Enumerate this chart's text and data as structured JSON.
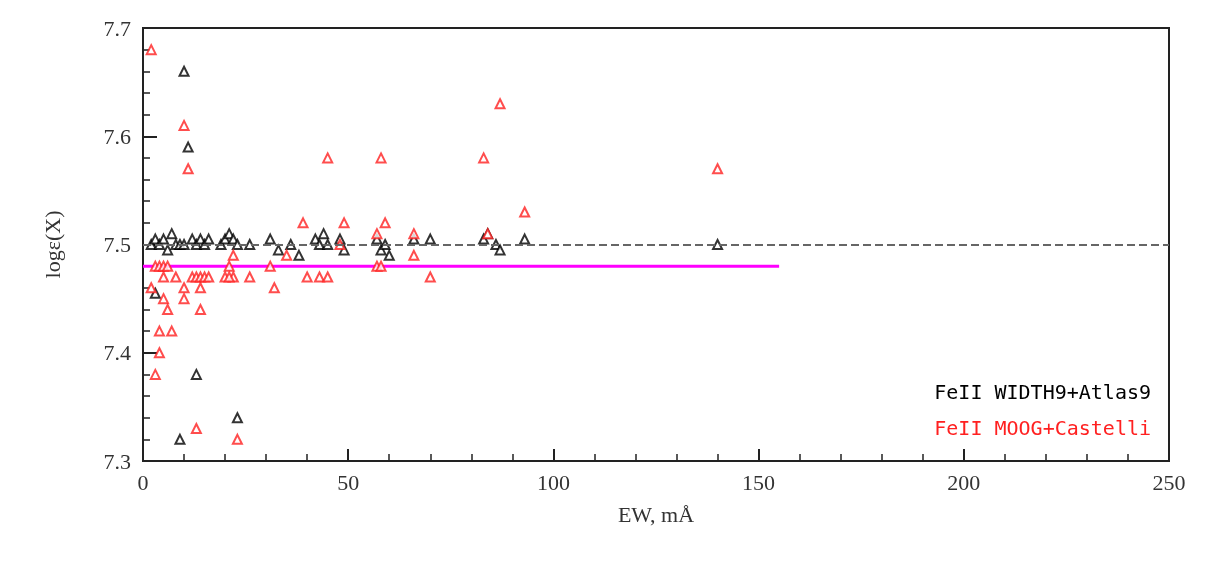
{
  "chart_data": {
    "type": "scatter",
    "xlabel": "EW, mÅ",
    "ylabel": "logε(X)",
    "xlim": [
      0,
      250
    ],
    "xticks": [
      0,
      50,
      100,
      150,
      200,
      250
    ],
    "ylim": [
      7.3,
      7.7
    ],
    "yticks": [
      7.3,
      7.4,
      7.5,
      7.6,
      7.7
    ],
    "grid": false,
    "legend": "bottom right",
    "marker": "triangle",
    "ref_lines": [
      {
        "axis": "y",
        "value": 7.5,
        "label": null,
        "color": "#666666",
        "line_style": "dashed"
      }
    ],
    "series": [
      {
        "name": "FeII WIDTH9+Atlas9",
        "color": "#000000",
        "x": [
          10,
          11,
          3,
          13,
          9,
          23,
          140,
          2,
          3,
          4,
          5,
          6,
          7,
          8,
          9,
          10,
          12,
          13,
          14,
          15,
          16,
          19,
          20,
          21,
          22,
          23,
          26,
          31,
          33,
          36,
          38,
          42,
          43,
          44,
          45,
          48,
          49,
          57,
          58,
          59,
          60,
          66,
          70,
          83,
          84,
          86,
          87,
          93
        ],
        "values": [
          7.66,
          7.59,
          7.455,
          7.38,
          7.32,
          7.34,
          7.5,
          7.5,
          7.505,
          7.5,
          7.505,
          7.495,
          7.51,
          7.5,
          7.5,
          7.5,
          7.505,
          7.5,
          7.505,
          7.5,
          7.505,
          7.5,
          7.505,
          7.51,
          7.505,
          7.5,
          7.5,
          7.505,
          7.495,
          7.5,
          7.49,
          7.505,
          7.5,
          7.51,
          7.5,
          7.505,
          7.495,
          7.505,
          7.495,
          7.5,
          7.49,
          7.505,
          7.505,
          7.505,
          7.51,
          7.5,
          7.495,
          7.505
        ]
      },
      {
        "name": "FeII MOOG+Castelli",
        "color": "#ff2020",
        "x": [
          2,
          10,
          11,
          45,
          58,
          83,
          87,
          140,
          93,
          39,
          49,
          59,
          57,
          66,
          84,
          48,
          22,
          35,
          3,
          4,
          5,
          6,
          21,
          31,
          57,
          58,
          2,
          3,
          4,
          4,
          5,
          6,
          7,
          5,
          8,
          10,
          12,
          13,
          14,
          15,
          14,
          16,
          20,
          22,
          21,
          26,
          14,
          32,
          40,
          43,
          45,
          66,
          70,
          13,
          23,
          10
        ],
        "values": [
          7.68,
          7.61,
          7.57,
          7.58,
          7.58,
          7.58,
          7.63,
          7.57,
          7.53,
          7.52,
          7.52,
          7.52,
          7.51,
          7.51,
          7.51,
          7.5,
          7.49,
          7.49,
          7.48,
          7.48,
          7.48,
          7.48,
          7.48,
          7.48,
          7.48,
          7.48,
          7.46,
          7.38,
          7.4,
          7.42,
          7.45,
          7.44,
          7.42,
          7.47,
          7.47,
          7.45,
          7.47,
          7.47,
          7.47,
          7.47,
          7.46,
          7.47,
          7.47,
          7.47,
          7.47,
          7.47,
          7.44,
          7.46,
          7.47,
          7.47,
          7.47,
          7.49,
          7.47,
          7.33,
          7.32,
          7.46
        ]
      },
      {
        "type": "line",
        "marker": "none",
        "color": "#ff00ff",
        "x": [
          0,
          155
        ],
        "values": [
          7.48,
          7.48
        ]
      }
    ]
  }
}
